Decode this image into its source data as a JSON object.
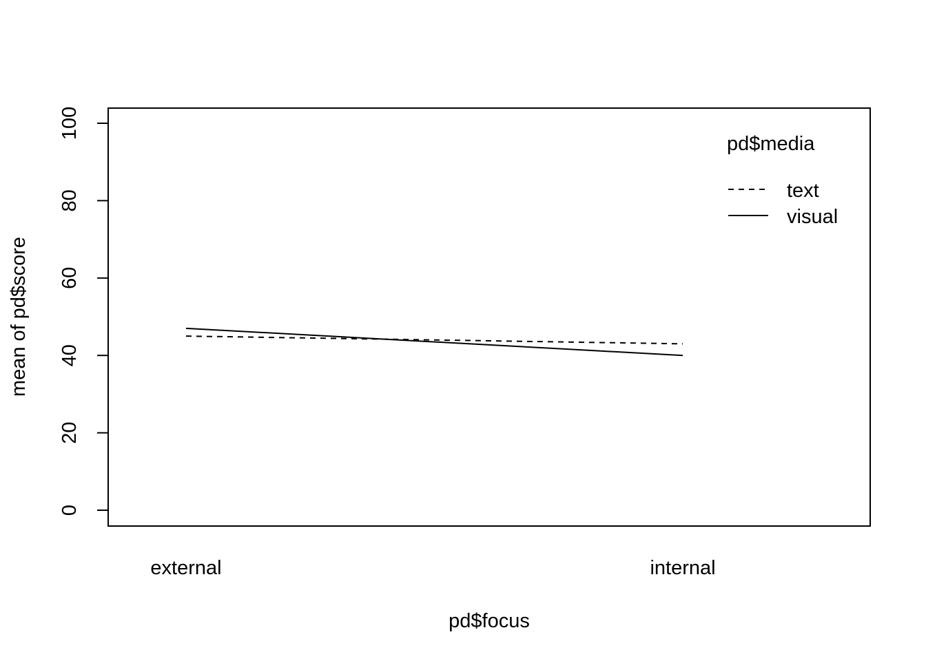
{
  "chart_data": {
    "type": "line",
    "title": "",
    "xlabel": "pd$focus",
    "ylabel": "mean of  pd$score",
    "categories": [
      "external",
      "internal"
    ],
    "ylim": [
      0,
      100
    ],
    "yticks": [
      0,
      20,
      40,
      60,
      80,
      100
    ],
    "grid": false,
    "legend": {
      "title": "pd$media",
      "placement": "top-right"
    },
    "series": [
      {
        "name": "text",
        "linestyle": "dashed",
        "color": "#000000",
        "values": [
          45,
          43
        ]
      },
      {
        "name": "visual",
        "linestyle": "solid",
        "color": "#000000",
        "values": [
          47,
          40
        ]
      }
    ]
  }
}
